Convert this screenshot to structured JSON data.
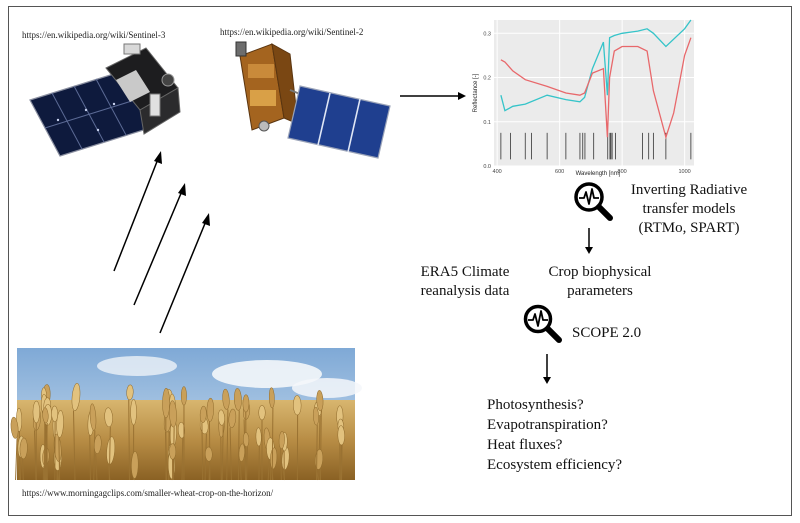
{
  "sources": {
    "sentinel3_url": "https://en.wikipedia.org/wiki/Sentinel-3",
    "sentinel2_url": "https://en.wikipedia.org/wiki/Sentinel-2",
    "wheat_url": "https://www.morningagclips.com/smaller-wheat-crop-on-the-horizon/"
  },
  "steps": {
    "rtm_line1": "Inverting Radiative",
    "rtm_line2": "transfer models",
    "rtm_line3": "(RTMo, SPART)",
    "crop_line1": "Crop biophysical",
    "crop_line2": "parameters",
    "era5_line1": "ERA5 Climate",
    "era5_line2": "reanalysis data",
    "scope_label": "SCOPE 2.0"
  },
  "outputs": [
    "Photosynthesis?",
    "Evapotranspiration?",
    "Heat fluxes?",
    "Ecosystem efficiency?"
  ],
  "icons": {
    "satellite_left": "sentinel-3-satellite",
    "satellite_right": "sentinel-2-satellite",
    "analysis": "magnifier-signal-icon",
    "photo": "wheat-field-photo"
  },
  "chart_data": {
    "type": "line",
    "xlabel": "Wavelength [nm]",
    "ylabel": "Reflectance [-]",
    "xlim": [
      390,
      1030
    ],
    "ylim": [
      0,
      0.33
    ],
    "xticks": [
      400,
      600,
      800,
      1000
    ],
    "yticks": [
      0.0,
      0.1,
      0.2,
      0.3
    ],
    "grid": true,
    "series": [
      {
        "color": "#35c4c9",
        "x": [
          412,
          425,
          450,
          490,
          560,
          620,
          665,
          680,
          705,
          740,
          753,
          760,
          775,
          800,
          850,
          880,
          900,
          940,
          1000,
          1020
        ],
        "y": [
          0.16,
          0.125,
          0.135,
          0.14,
          0.16,
          0.15,
          0.145,
          0.155,
          0.22,
          0.28,
          0.16,
          0.29,
          0.295,
          0.3,
          0.305,
          0.31,
          0.3,
          0.27,
          0.31,
          0.33
        ]
      },
      {
        "color": "#e8686b",
        "x": [
          412,
          425,
          450,
          490,
          560,
          620,
          665,
          680,
          705,
          740,
          753,
          760,
          775,
          800,
          850,
          880,
          900,
          940,
          965,
          1000,
          1020
        ],
        "y": [
          0.24,
          0.235,
          0.215,
          0.195,
          0.18,
          0.165,
          0.16,
          0.165,
          0.21,
          0.22,
          0.065,
          0.2,
          0.26,
          0.27,
          0.27,
          0.26,
          0.17,
          0.065,
          0.12,
          0.25,
          0.29
        ]
      }
    ],
    "bands": [
      412,
      443,
      490,
      510,
      560,
      620,
      665,
      674,
      681,
      709,
      754,
      761,
      764,
      768,
      779,
      865,
      885,
      900,
      940,
      1020
    ]
  }
}
